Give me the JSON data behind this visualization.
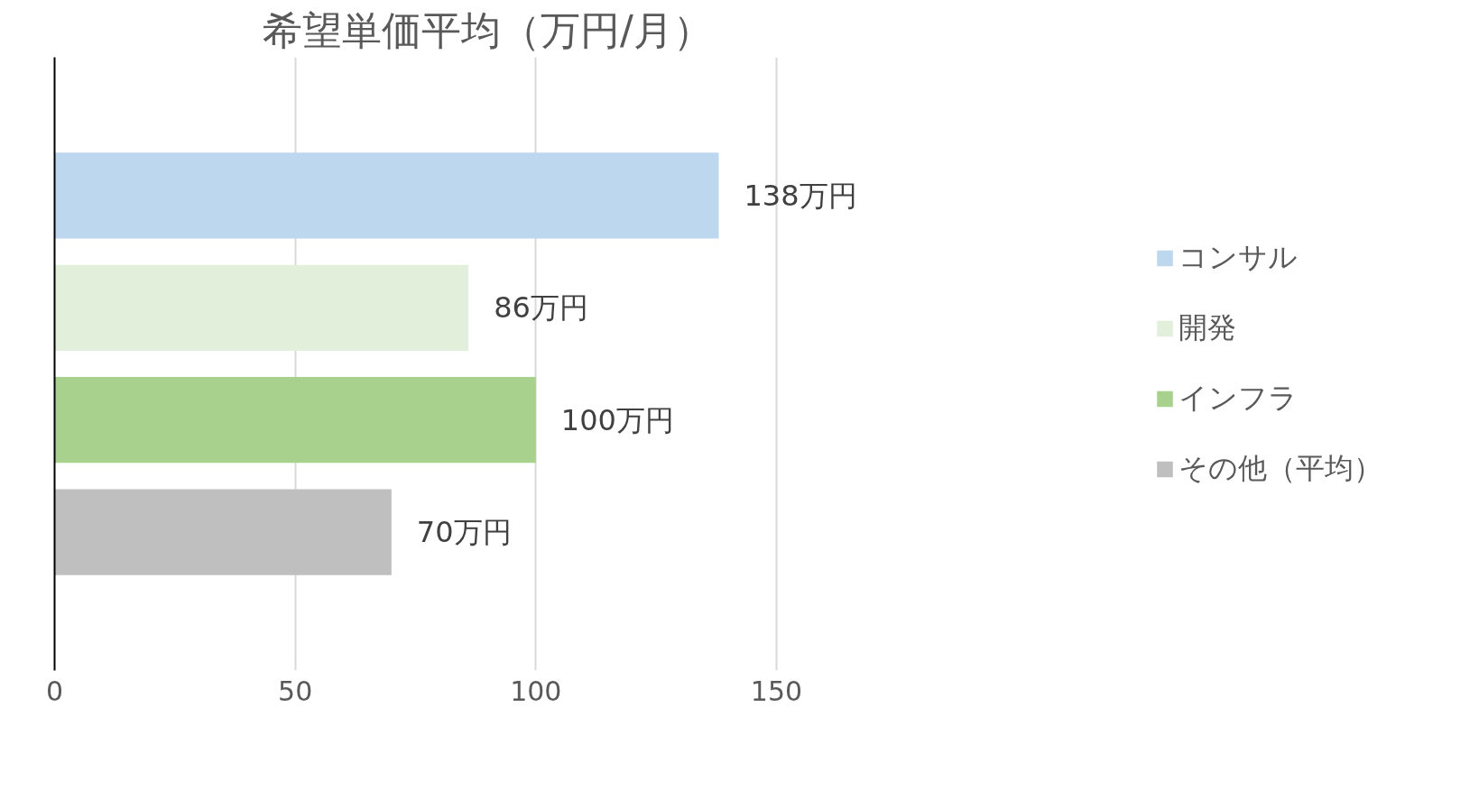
{
  "chart_data": {
    "type": "bar",
    "orientation": "horizontal",
    "title": "希望単価平均（万円/月）",
    "categories": [
      null
    ],
    "series": [
      {
        "name": "コンサル",
        "color": "#bdd7ee",
        "values": [
          138
        ],
        "value_labels": [
          "138万円"
        ]
      },
      {
        "name": "開発",
        "color": "#e2efda",
        "values": [
          86
        ],
        "value_labels": [
          "86万円"
        ]
      },
      {
        "name": "インフラ",
        "color": "#a9d18e",
        "values": [
          100
        ],
        "value_labels": [
          "100万円"
        ]
      },
      {
        "name": "その他（平均）",
        "color": "#bfbfbf",
        "values": [
          70
        ],
        "value_labels": [
          "70万円"
        ]
      }
    ],
    "xlim": [
      0,
      150
    ],
    "xticks": [
      0,
      50,
      100,
      150
    ],
    "grid": "x",
    "legend": "right"
  }
}
